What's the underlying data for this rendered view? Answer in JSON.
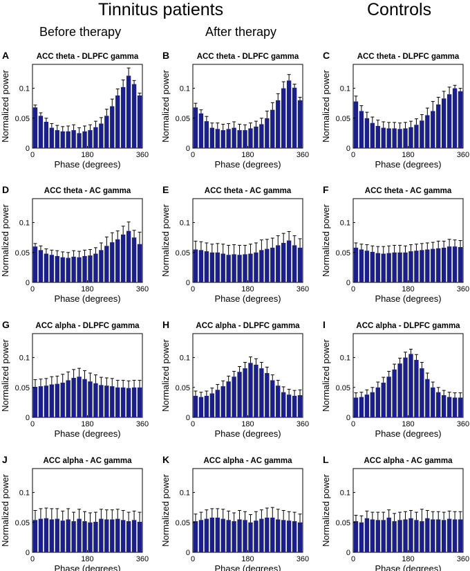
{
  "headers": {
    "tinnitus": "Tinnitus patients",
    "controls": "Controls",
    "before": "Before therapy",
    "after": "After therapy"
  },
  "colors": {
    "bar": "#1a1f8c",
    "axis": "#000000"
  },
  "chart_data": [
    {
      "panel": "A",
      "type": "bar",
      "title": "ACC theta - DLPFC gamma",
      "xlabel": "Phase (degrees)",
      "ylabel": "Normalized power",
      "xlim": [
        0,
        360
      ],
      "ylim": [
        0,
        0.14
      ],
      "xticks": [
        0,
        180,
        360
      ],
      "yticks": [
        0,
        0.05,
        0.1
      ],
      "ytick_labels": [
        "0",
        "0.05",
        "0.1"
      ],
      "values": [
        0.068,
        0.054,
        0.044,
        0.034,
        0.03,
        0.028,
        0.028,
        0.03,
        0.025,
        0.028,
        0.03,
        0.035,
        0.041,
        0.054,
        0.07,
        0.088,
        0.102,
        0.121,
        0.107,
        0.088
      ],
      "errors": [
        0.004,
        0.005,
        0.006,
        0.007,
        0.008,
        0.008,
        0.009,
        0.009,
        0.009,
        0.009,
        0.009,
        0.01,
        0.01,
        0.011,
        0.012,
        0.011,
        0.012,
        0.013,
        0.006,
        0.004
      ]
    },
    {
      "panel": "B",
      "type": "bar",
      "title": "ACC theta - DLPFC gamma",
      "xlabel": "Phase (degrees)",
      "ylabel": "Normalized power",
      "xlim": [
        0,
        360
      ],
      "ylim": [
        0,
        0.14
      ],
      "xticks": [
        0,
        180,
        360
      ],
      "yticks": [
        0,
        0.05,
        0.1
      ],
      "ytick_labels": [
        "0",
        "0.05",
        "0.1"
      ],
      "values": [
        0.068,
        0.058,
        0.045,
        0.034,
        0.032,
        0.03,
        0.032,
        0.034,
        0.03,
        0.03,
        0.033,
        0.036,
        0.04,
        0.05,
        0.064,
        0.08,
        0.1,
        0.113,
        0.101,
        0.08
      ],
      "errors": [
        0.007,
        0.006,
        0.008,
        0.008,
        0.01,
        0.01,
        0.009,
        0.01,
        0.01,
        0.009,
        0.009,
        0.009,
        0.01,
        0.012,
        0.012,
        0.011,
        0.011,
        0.01,
        0.006,
        0.005
      ]
    },
    {
      "panel": "C",
      "type": "bar",
      "title": "ACC theta - DLPFC gamma",
      "xlabel": "Phase (degrees)",
      "ylabel": "Normalized power",
      "xlim": [
        0,
        360
      ],
      "ylim": [
        0,
        0.14
      ],
      "xticks": [
        0,
        180,
        360
      ],
      "yticks": [
        0,
        0.05,
        0.1
      ],
      "ytick_labels": [
        "0",
        "0.05",
        "0.1"
      ],
      "values": [
        0.078,
        0.062,
        0.05,
        0.042,
        0.037,
        0.034,
        0.033,
        0.033,
        0.032,
        0.033,
        0.035,
        0.039,
        0.046,
        0.055,
        0.062,
        0.073,
        0.083,
        0.09,
        0.1,
        0.095
      ],
      "errors": [
        0.009,
        0.009,
        0.01,
        0.01,
        0.01,
        0.01,
        0.01,
        0.01,
        0.01,
        0.01,
        0.01,
        0.01,
        0.01,
        0.012,
        0.016,
        0.012,
        0.012,
        0.012,
        0.005,
        0.005
      ]
    },
    {
      "panel": "D",
      "type": "bar",
      "title": "ACC theta - AC gamma",
      "xlabel": "Phase (degrees)",
      "ylabel": "Normalized power",
      "xlim": [
        0,
        360
      ],
      "ylim": [
        0,
        0.14
      ],
      "xticks": [
        0,
        180,
        360
      ],
      "yticks": [
        0,
        0.05,
        0.1
      ],
      "ytick_labels": [
        "0",
        "0.05",
        "0.1"
      ],
      "values": [
        0.06,
        0.054,
        0.048,
        0.046,
        0.044,
        0.042,
        0.041,
        0.043,
        0.042,
        0.044,
        0.045,
        0.048,
        0.054,
        0.061,
        0.067,
        0.072,
        0.08,
        0.086,
        0.075,
        0.064
      ],
      "errors": [
        0.005,
        0.007,
        0.008,
        0.008,
        0.009,
        0.009,
        0.009,
        0.01,
        0.01,
        0.01,
        0.01,
        0.01,
        0.012,
        0.015,
        0.016,
        0.014,
        0.014,
        0.015,
        0.012,
        0.02
      ]
    },
    {
      "panel": "E",
      "type": "bar",
      "title": "ACC theta - AC gamma",
      "xlabel": "Phase (degrees)",
      "ylabel": "Normalized power",
      "xlim": [
        0,
        360
      ],
      "ylim": [
        0,
        0.14
      ],
      "xticks": [
        0,
        180,
        360
      ],
      "yticks": [
        0,
        0.05,
        0.1
      ],
      "ytick_labels": [
        "0",
        "0.05",
        "0.1"
      ],
      "values": [
        0.055,
        0.054,
        0.052,
        0.05,
        0.05,
        0.048,
        0.046,
        0.047,
        0.046,
        0.047,
        0.048,
        0.05,
        0.054,
        0.056,
        0.058,
        0.062,
        0.066,
        0.07,
        0.062,
        0.058
      ],
      "errors": [
        0.014,
        0.014,
        0.014,
        0.014,
        0.015,
        0.016,
        0.016,
        0.016,
        0.016,
        0.015,
        0.016,
        0.016,
        0.017,
        0.016,
        0.016,
        0.016,
        0.016,
        0.015,
        0.016,
        0.015
      ]
    },
    {
      "panel": "F",
      "type": "bar",
      "title": "ACC theta - AC gamma",
      "xlabel": "Phase (degrees)",
      "ylabel": "Normalized power",
      "xlim": [
        0,
        360
      ],
      "ylim": [
        0,
        0.14
      ],
      "xticks": [
        0,
        180,
        360
      ],
      "yticks": [
        0,
        0.05,
        0.1
      ],
      "ytick_labels": [
        "0",
        "0.05",
        "0.1"
      ],
      "values": [
        0.058,
        0.055,
        0.053,
        0.051,
        0.049,
        0.048,
        0.049,
        0.05,
        0.05,
        0.05,
        0.052,
        0.053,
        0.054,
        0.055,
        0.056,
        0.057,
        0.058,
        0.06,
        0.06,
        0.059
      ],
      "errors": [
        0.008,
        0.009,
        0.01,
        0.01,
        0.011,
        0.012,
        0.012,
        0.012,
        0.012,
        0.011,
        0.011,
        0.011,
        0.011,
        0.011,
        0.011,
        0.012,
        0.011,
        0.012,
        0.011,
        0.011
      ]
    },
    {
      "panel": "G",
      "type": "bar",
      "title": "ACC alpha - DLPFC gamma",
      "xlabel": "Phase (degrees)",
      "ylabel": "Normalized power",
      "xlim": [
        0,
        360
      ],
      "ylim": [
        0,
        0.14
      ],
      "xticks": [
        0,
        180,
        360
      ],
      "yticks": [
        0,
        0.05,
        0.1
      ],
      "ytick_labels": [
        "0",
        "0.05",
        "0.1"
      ],
      "values": [
        0.051,
        0.052,
        0.053,
        0.055,
        0.056,
        0.058,
        0.062,
        0.066,
        0.068,
        0.064,
        0.06,
        0.057,
        0.054,
        0.053,
        0.052,
        0.05,
        0.05,
        0.049,
        0.05,
        0.05
      ],
      "errors": [
        0.012,
        0.012,
        0.012,
        0.013,
        0.013,
        0.014,
        0.014,
        0.014,
        0.014,
        0.014,
        0.014,
        0.014,
        0.013,
        0.013,
        0.013,
        0.012,
        0.012,
        0.012,
        0.012,
        0.012
      ]
    },
    {
      "panel": "H",
      "type": "bar",
      "title": "ACC alpha - DLPFC gamma",
      "xlabel": "Phase (degrees)",
      "ylabel": "Normalized power",
      "xlim": [
        0,
        360
      ],
      "ylim": [
        0,
        0.14
      ],
      "xticks": [
        0,
        180,
        360
      ],
      "yticks": [
        0,
        0.05,
        0.1
      ],
      "ytick_labels": [
        "0",
        "0.05",
        "0.1"
      ],
      "values": [
        0.036,
        0.034,
        0.036,
        0.04,
        0.046,
        0.052,
        0.06,
        0.068,
        0.076,
        0.082,
        0.091,
        0.088,
        0.082,
        0.074,
        0.062,
        0.053,
        0.042,
        0.038,
        0.036,
        0.037
      ],
      "errors": [
        0.008,
        0.008,
        0.008,
        0.009,
        0.009,
        0.009,
        0.009,
        0.009,
        0.009,
        0.01,
        0.01,
        0.01,
        0.01,
        0.01,
        0.009,
        0.009,
        0.009,
        0.009,
        0.009,
        0.009
      ]
    },
    {
      "panel": "I",
      "type": "bar",
      "title": "ACC alpha - DLPFC gamma",
      "xlabel": "Phase (degrees)",
      "ylabel": "Normalized power",
      "xlim": [
        0,
        360
      ],
      "ylim": [
        0,
        0.14
      ],
      "xticks": [
        0,
        180,
        360
      ],
      "yticks": [
        0,
        0.05,
        0.1
      ],
      "ytick_labels": [
        "0",
        "0.05",
        "0.1"
      ],
      "values": [
        0.033,
        0.034,
        0.038,
        0.042,
        0.05,
        0.058,
        0.068,
        0.08,
        0.09,
        0.1,
        0.106,
        0.096,
        0.082,
        0.064,
        0.05,
        0.042,
        0.037,
        0.034,
        0.033,
        0.033
      ],
      "errors": [
        0.008,
        0.008,
        0.008,
        0.008,
        0.009,
        0.009,
        0.009,
        0.009,
        0.009,
        0.009,
        0.008,
        0.009,
        0.01,
        0.01,
        0.009,
        0.008,
        0.008,
        0.008,
        0.008,
        0.008
      ]
    },
    {
      "panel": "J",
      "type": "bar",
      "title": "ACC alpha - AC gamma",
      "xlabel": "Phase (degrees)",
      "ylabel": "Normalized power",
      "xlim": [
        0,
        360
      ],
      "ylim": [
        0,
        0.14
      ],
      "xticks": [
        0,
        180,
        360
      ],
      "yticks": [
        0,
        0.05,
        0.1
      ],
      "ytick_labels": [
        "0",
        "0.05",
        "0.1"
      ],
      "values": [
        0.054,
        0.056,
        0.057,
        0.055,
        0.056,
        0.053,
        0.055,
        0.052,
        0.056,
        0.052,
        0.05,
        0.051,
        0.056,
        0.055,
        0.055,
        0.056,
        0.054,
        0.052,
        0.054,
        0.051
      ],
      "errors": [
        0.016,
        0.017,
        0.017,
        0.018,
        0.017,
        0.016,
        0.018,
        0.015,
        0.016,
        0.016,
        0.016,
        0.016,
        0.016,
        0.016,
        0.016,
        0.016,
        0.016,
        0.015,
        0.015,
        0.016
      ]
    },
    {
      "panel": "K",
      "type": "bar",
      "title": "ACC alpha - AC gamma",
      "xlabel": "Phase (degrees)",
      "ylabel": "Normalized power",
      "xlim": [
        0,
        360
      ],
      "ylim": [
        0,
        0.14
      ],
      "xticks": [
        0,
        180,
        360
      ],
      "yticks": [
        0,
        0.05,
        0.1
      ],
      "ytick_labels": [
        "0",
        "0.05",
        "0.1"
      ],
      "values": [
        0.052,
        0.054,
        0.056,
        0.058,
        0.058,
        0.056,
        0.054,
        0.052,
        0.055,
        0.054,
        0.05,
        0.053,
        0.056,
        0.058,
        0.058,
        0.055,
        0.054,
        0.053,
        0.052,
        0.05
      ],
      "errors": [
        0.012,
        0.013,
        0.015,
        0.015,
        0.015,
        0.016,
        0.015,
        0.014,
        0.015,
        0.014,
        0.013,
        0.015,
        0.015,
        0.016,
        0.017,
        0.017,
        0.016,
        0.015,
        0.015,
        0.014
      ]
    },
    {
      "panel": "L",
      "type": "bar",
      "title": "ACC alpha - AC gamma",
      "xlabel": "Phase (degrees)",
      "ylabel": "Normalized power",
      "xlim": [
        0,
        360
      ],
      "ylim": [
        0,
        0.14
      ],
      "xticks": [
        0,
        180,
        360
      ],
      "yticks": [
        0,
        0.05,
        0.1
      ],
      "ytick_labels": [
        "0",
        "0.05",
        "0.1"
      ],
      "values": [
        0.052,
        0.05,
        0.057,
        0.055,
        0.054,
        0.054,
        0.058,
        0.052,
        0.054,
        0.055,
        0.057,
        0.054,
        0.052,
        0.057,
        0.055,
        0.055,
        0.054,
        0.056,
        0.055,
        0.055
      ],
      "errors": [
        0.01,
        0.011,
        0.012,
        0.012,
        0.013,
        0.013,
        0.013,
        0.013,
        0.013,
        0.013,
        0.013,
        0.013,
        0.02,
        0.013,
        0.013,
        0.013,
        0.013,
        0.013,
        0.013,
        0.013
      ]
    }
  ]
}
